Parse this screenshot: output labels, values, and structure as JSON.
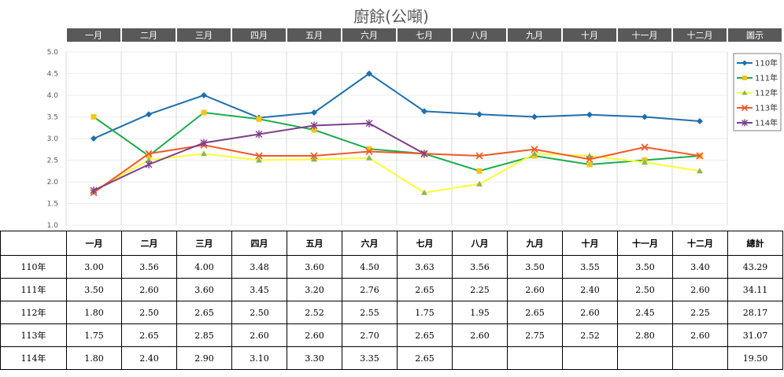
{
  "title": "廚餘(公噸)",
  "header_labels": [
    "一月",
    "二月",
    "三月",
    "四月",
    "五月",
    "六月",
    "七月",
    "八月",
    "九月",
    "十月",
    "十一月",
    "十二月",
    "圖示"
  ],
  "table": {
    "columns": [
      "一月",
      "二月",
      "三月",
      "四月",
      "五月",
      "六月",
      "七月",
      "八月",
      "九月",
      "十月",
      "十一月",
      "十二月",
      "總計"
    ],
    "rows": [
      {
        "label": "110年",
        "cells": [
          "3.00",
          "3.56",
          "4.00",
          "3.48",
          "3.60",
          "4.50",
          "3.63",
          "3.56",
          "3.50",
          "3.55",
          "3.50",
          "3.40",
          "43.29"
        ]
      },
      {
        "label": "111年",
        "cells": [
          "3.50",
          "2.60",
          "3.60",
          "3.45",
          "3.20",
          "2.76",
          "2.65",
          "2.25",
          "2.60",
          "2.40",
          "2.50",
          "2.60",
          "34.11"
        ]
      },
      {
        "label": "112年",
        "cells": [
          "1.80",
          "2.50",
          "2.65",
          "2.50",
          "2.52",
          "2.55",
          "1.75",
          "1.95",
          "2.65",
          "2.60",
          "2.45",
          "2.25",
          "28.17"
        ]
      },
      {
        "label": "113年",
        "cells": [
          "1.75",
          "2.65",
          "2.85",
          "2.60",
          "2.60",
          "2.70",
          "2.65",
          "2.60",
          "2.75",
          "2.52",
          "2.80",
          "2.60",
          "31.07"
        ]
      },
      {
        "label": "114年",
        "cells": [
          "1.80",
          "2.40",
          "2.90",
          "3.10",
          "3.30",
          "3.35",
          "2.65",
          "",
          "",
          "",
          "",
          "",
          "19.50"
        ]
      }
    ]
  },
  "chart_data": {
    "type": "line",
    "title": "廚餘(公噸)",
    "categories": [
      "一月",
      "二月",
      "三月",
      "四月",
      "五月",
      "六月",
      "七月",
      "八月",
      "九月",
      "十月",
      "十一月",
      "十二月"
    ],
    "ylim": [
      1.0,
      5.0
    ],
    "yticks": [
      "1.0",
      "1.5",
      "2.0",
      "2.5",
      "3.0",
      "3.5",
      "4.0",
      "4.5",
      "5.0"
    ],
    "grid": "vertical and horizontal, light gray",
    "legend_position": "right",
    "series": [
      {
        "name": "110年",
        "color": "#1F6FAE",
        "marker": "diamond",
        "values": [
          3.0,
          3.56,
          4.0,
          3.48,
          3.6,
          4.5,
          3.63,
          3.56,
          3.5,
          3.55,
          3.5,
          3.4
        ]
      },
      {
        "name": "111年",
        "color": "#1CAD4E",
        "marker": "square",
        "marker_color": "#F5C518",
        "values": [
          3.5,
          2.6,
          3.6,
          3.45,
          3.2,
          2.76,
          2.65,
          2.25,
          2.6,
          2.4,
          2.5,
          2.6
        ]
      },
      {
        "name": "112年",
        "color": "#FFFF33",
        "marker": "triangle",
        "marker_color": "#8DB45A",
        "values": [
          1.8,
          2.5,
          2.65,
          2.5,
          2.52,
          2.55,
          1.75,
          1.95,
          2.65,
          2.6,
          2.45,
          2.25
        ]
      },
      {
        "name": "113年",
        "color": "#F05A28",
        "marker": "x",
        "values": [
          1.75,
          2.65,
          2.85,
          2.6,
          2.6,
          2.7,
          2.65,
          2.6,
          2.75,
          2.52,
          2.8,
          2.6
        ]
      },
      {
        "name": "114年",
        "color": "#7E3F8E",
        "marker": "star",
        "values": [
          1.8,
          2.4,
          2.9,
          3.1,
          3.3,
          3.35,
          2.65,
          null,
          null,
          null,
          null,
          null
        ]
      }
    ]
  },
  "colors": {
    "header_bg": "#595959",
    "header_text": "#ffffff",
    "grid": "#D9D9D9"
  }
}
